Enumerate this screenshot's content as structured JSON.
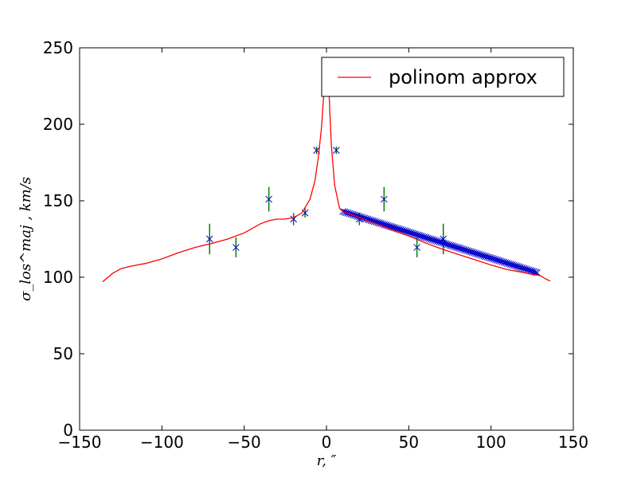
{
  "chart_data": {
    "type": "scatter",
    "xlim": [
      -150,
      150
    ],
    "ylim": [
      0,
      250
    ],
    "xticks": [
      -150,
      -100,
      -50,
      0,
      50,
      100,
      150
    ],
    "yticks": [
      0,
      50,
      100,
      150,
      200,
      250
    ],
    "xlabel": "r, ″",
    "ylabel": "σ_los^maj , km/s",
    "legend": {
      "label": "polinom approx",
      "position": "upper right"
    },
    "colors": {
      "fit": "#ff0000",
      "marker": "#0000cc",
      "errorbar": "#008000"
    },
    "fit_curve": {
      "name": "polinom approx",
      "x": [
        -136,
        -130,
        -125,
        -120,
        -115,
        -110,
        -100,
        -90,
        -80,
        -70,
        -60,
        -50,
        -45,
        -40,
        -35,
        -30,
        -25,
        -20,
        -15,
        -10,
        -7,
        -5,
        -3,
        -1.5,
        0,
        1,
        2,
        3,
        5,
        8,
        10,
        12,
        15,
        20,
        30,
        40,
        50,
        60,
        70,
        80,
        90,
        100,
        110,
        120,
        125,
        130,
        133,
        136
      ],
      "y": [
        97,
        102.5,
        105.5,
        107,
        108,
        109,
        112,
        116,
        119.5,
        122,
        125,
        129,
        132,
        135,
        137,
        138,
        138,
        139,
        142,
        151,
        163,
        178,
        198,
        222,
        243,
        236,
        210,
        186,
        160,
        145,
        143,
        142,
        141,
        139,
        135,
        131,
        127,
        122.5,
        118.5,
        115,
        111.5,
        108,
        105,
        103,
        102,
        101,
        99,
        97.5
      ]
    },
    "errorbar_points": {
      "x": [
        -71,
        -55,
        -35,
        -20,
        -13,
        -6,
        6,
        20,
        35,
        55,
        71
      ],
      "y": [
        125,
        119.5,
        151,
        138,
        142,
        183,
        183,
        138,
        151,
        119.5,
        125
      ],
      "yerr": [
        10,
        6.5,
        8,
        4,
        3,
        2.5,
        2.5,
        4,
        8,
        6.5,
        10
      ]
    },
    "dense_markers": {
      "x_start": 10,
      "x_end": 128,
      "count": 118,
      "y_start": 143,
      "y_end": 103
    }
  }
}
